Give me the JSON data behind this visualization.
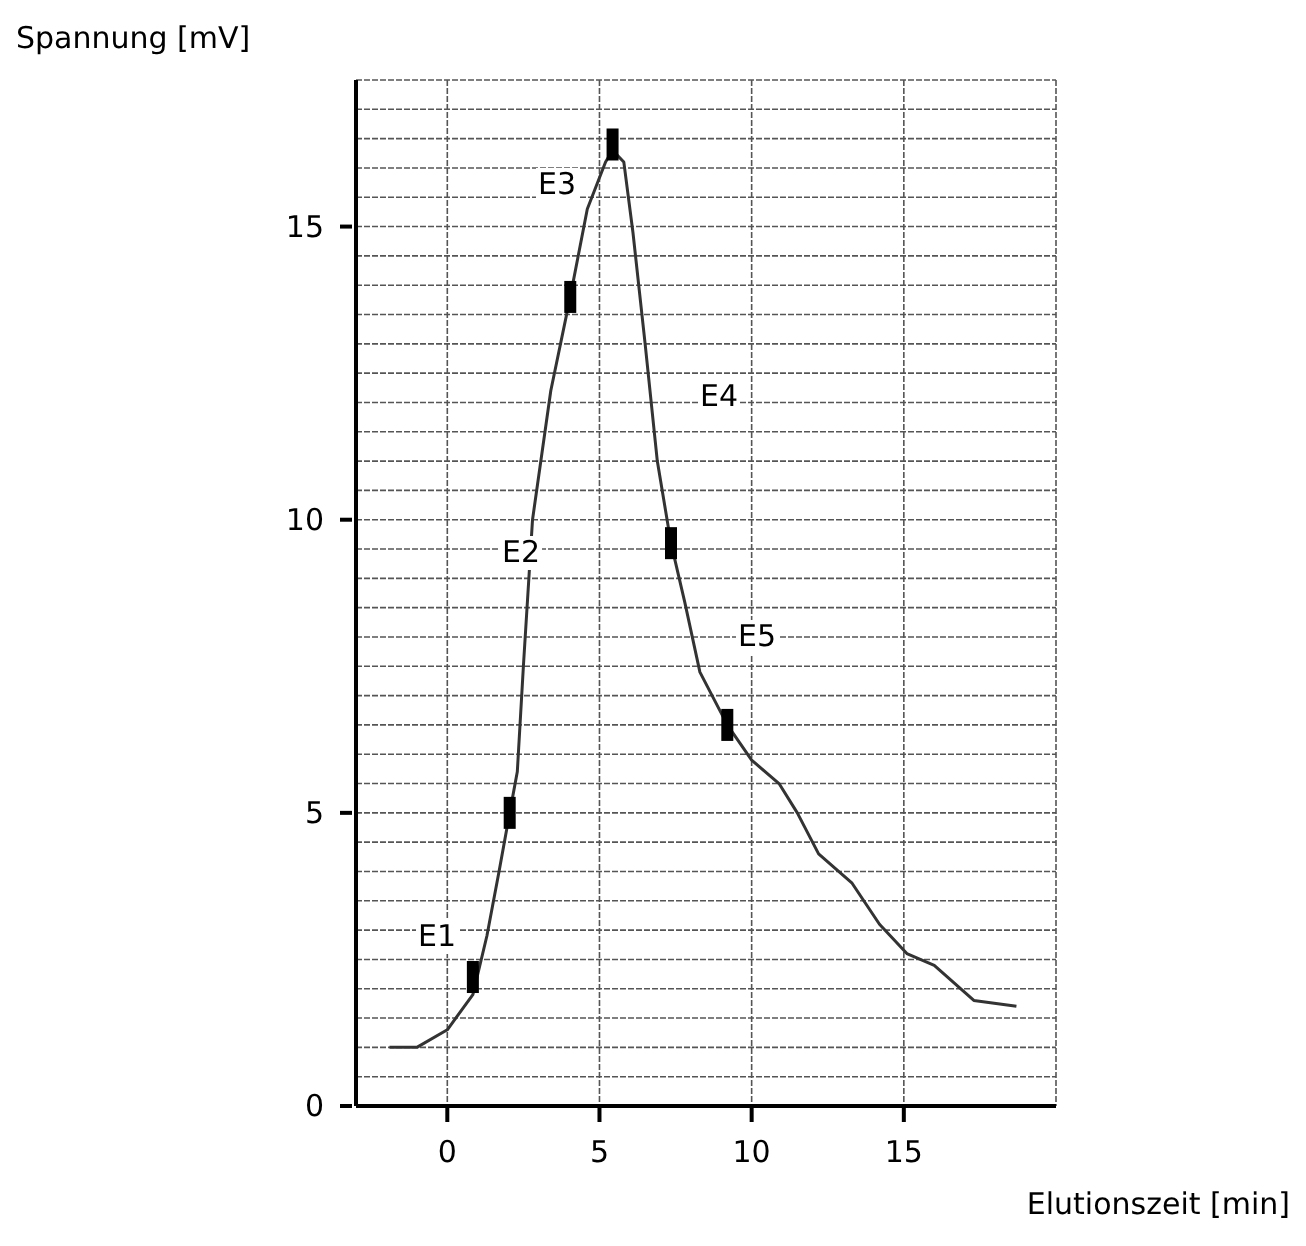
{
  "chart_data": {
    "type": "line",
    "xlabel": "Elutionszeit [min]",
    "ylabel": "Spannung [mV]",
    "xlim": [
      -3,
      20
    ],
    "ylim": [
      0,
      17.5
    ],
    "xticks": [
      0,
      5,
      10,
      15
    ],
    "yticks": [
      0,
      {
        "value": 0.5,
        "label": null
      },
      {
        "value": 1,
        "label": null
      },
      {
        "value": 1.5,
        "label": null
      },
      {
        "value": 2,
        "label": null
      },
      {
        "value": 2.5,
        "label": null
      },
      {
        "value": 3,
        "label": null
      },
      {
        "value": 3.5,
        "label": null
      },
      {
        "value": 4,
        "label": null
      },
      {
        "value": 4.5,
        "label": null
      },
      5,
      {
        "value": 5.5,
        "label": null
      },
      {
        "value": 6,
        "label": null
      },
      {
        "value": 6.5,
        "label": null
      },
      {
        "value": 7,
        "label": null
      },
      {
        "value": 7.5,
        "label": null
      },
      {
        "value": 8,
        "label": null
      },
      {
        "value": 8.5,
        "label": null
      },
      {
        "value": 9,
        "label": null
      },
      {
        "value": 9.5,
        "label": null
      },
      10,
      {
        "value": 10.5,
        "label": null
      },
      {
        "value": 11,
        "label": null
      },
      {
        "value": 11.5,
        "label": null
      },
      {
        "value": 12,
        "label": null
      },
      {
        "value": 12.5,
        "label": null
      },
      {
        "value": 13,
        "label": null
      },
      {
        "value": 13.5,
        "label": null
      },
      {
        "value": 14,
        "label": null
      },
      {
        "value": 14.5,
        "label": null
      },
      15,
      {
        "value": 15.5,
        "label": null
      },
      {
        "value": 16,
        "label": null
      },
      {
        "value": 16.5,
        "label": null
      },
      {
        "value": 17,
        "label": null
      }
    ],
    "grid": true,
    "legend": false,
    "series": [
      {
        "color": "#333333",
        "marker": "none",
        "line_style": "solid",
        "x": [
          -1.9,
          -1.0,
          0,
          0.84,
          1.3,
          1.7,
          2.05,
          2.3,
          2.5,
          2.8,
          3.4,
          4.04,
          4.6,
          5.2,
          5.43,
          5.8,
          6.1,
          6.5,
          6.9,
          7.35,
          7.8,
          8.3,
          9.2,
          10.0,
          10.9,
          11.5,
          12.2,
          13.3,
          14.2,
          15.1,
          16.0,
          17.3,
          18.7
        ],
        "values": [
          1.0,
          1.0,
          1.3,
          1.9,
          2.9,
          4.0,
          5.0,
          5.7,
          7.5,
          10.0,
          12.2,
          13.8,
          15.3,
          16.1,
          16.3,
          16.1,
          14.9,
          13.0,
          11.0,
          9.6,
          8.6,
          7.4,
          6.5,
          5.9,
          5.5,
          5.0,
          4.3,
          3.8,
          3.1,
          2.6,
          2.4,
          1.8,
          1.7
        ]
      },
      {
        "type": "scatter",
        "color": "#000000",
        "marker": "square",
        "x": [
          0.84,
          2.05,
          4.04,
          5.43,
          7.35,
          9.2
        ],
        "values": [
          2.2,
          5.0,
          13.8,
          16.4,
          9.6,
          6.5
        ]
      }
    ],
    "annotations": [
      "E1",
      "E2",
      "E3",
      "E4",
      "E5"
    ]
  }
}
